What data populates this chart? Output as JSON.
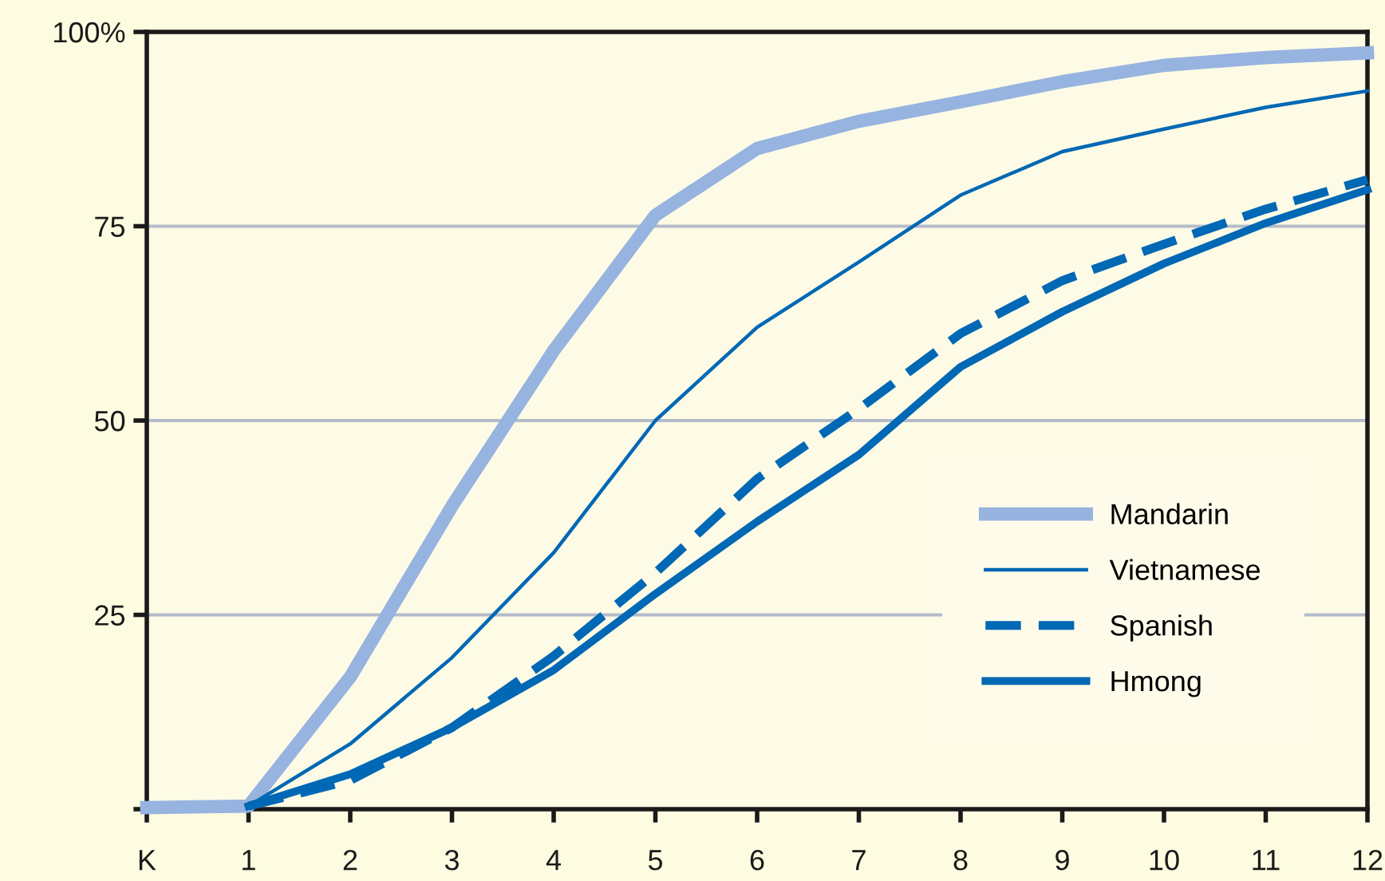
{
  "chart_data": {
    "type": "line",
    "categories": [
      "K",
      "1",
      "2",
      "3",
      "4",
      "5",
      "6",
      "7",
      "8",
      "9",
      "10",
      "11",
      "12"
    ],
    "series": [
      {
        "name": "Mandarin",
        "color": "#97b3e0",
        "line_style": "solid",
        "values": [
          0.2,
          0.4,
          17,
          39,
          59,
          76.4,
          85,
          88.5,
          91,
          93.6,
          95.7,
          96.7,
          97.3
        ]
      },
      {
        "name": "Vietnamese",
        "color": "#0068b5",
        "line_style": "solid",
        "values": [
          null,
          0.4,
          8.4,
          19.5,
          33,
          50,
          62,
          70.4,
          79,
          84.6,
          87.5,
          90.3,
          92.4
        ]
      },
      {
        "name": "Spanish",
        "color": "#0068b5",
        "line_style": "dashed",
        "values": [
          null,
          0.4,
          3.7,
          10.5,
          19.7,
          30.4,
          42.5,
          51.5,
          61.2,
          68,
          72.7,
          77.2,
          81
        ]
      },
      {
        "name": "Hmong",
        "color": "#0068b5",
        "line_style": "solid",
        "values": [
          null,
          0.4,
          4.5,
          10.5,
          17.9,
          27.7,
          37,
          45.6,
          56.9,
          64,
          70.2,
          75.4,
          79.7
        ]
      }
    ],
    "ylim": [
      0,
      100
    ],
    "yticks": [
      {
        "value": 0,
        "label": null
      },
      25,
      50,
      75,
      {
        "value": 100,
        "label": "100%"
      }
    ],
    "grid": "y",
    "legend": "bottom right",
    "marker": "none"
  }
}
